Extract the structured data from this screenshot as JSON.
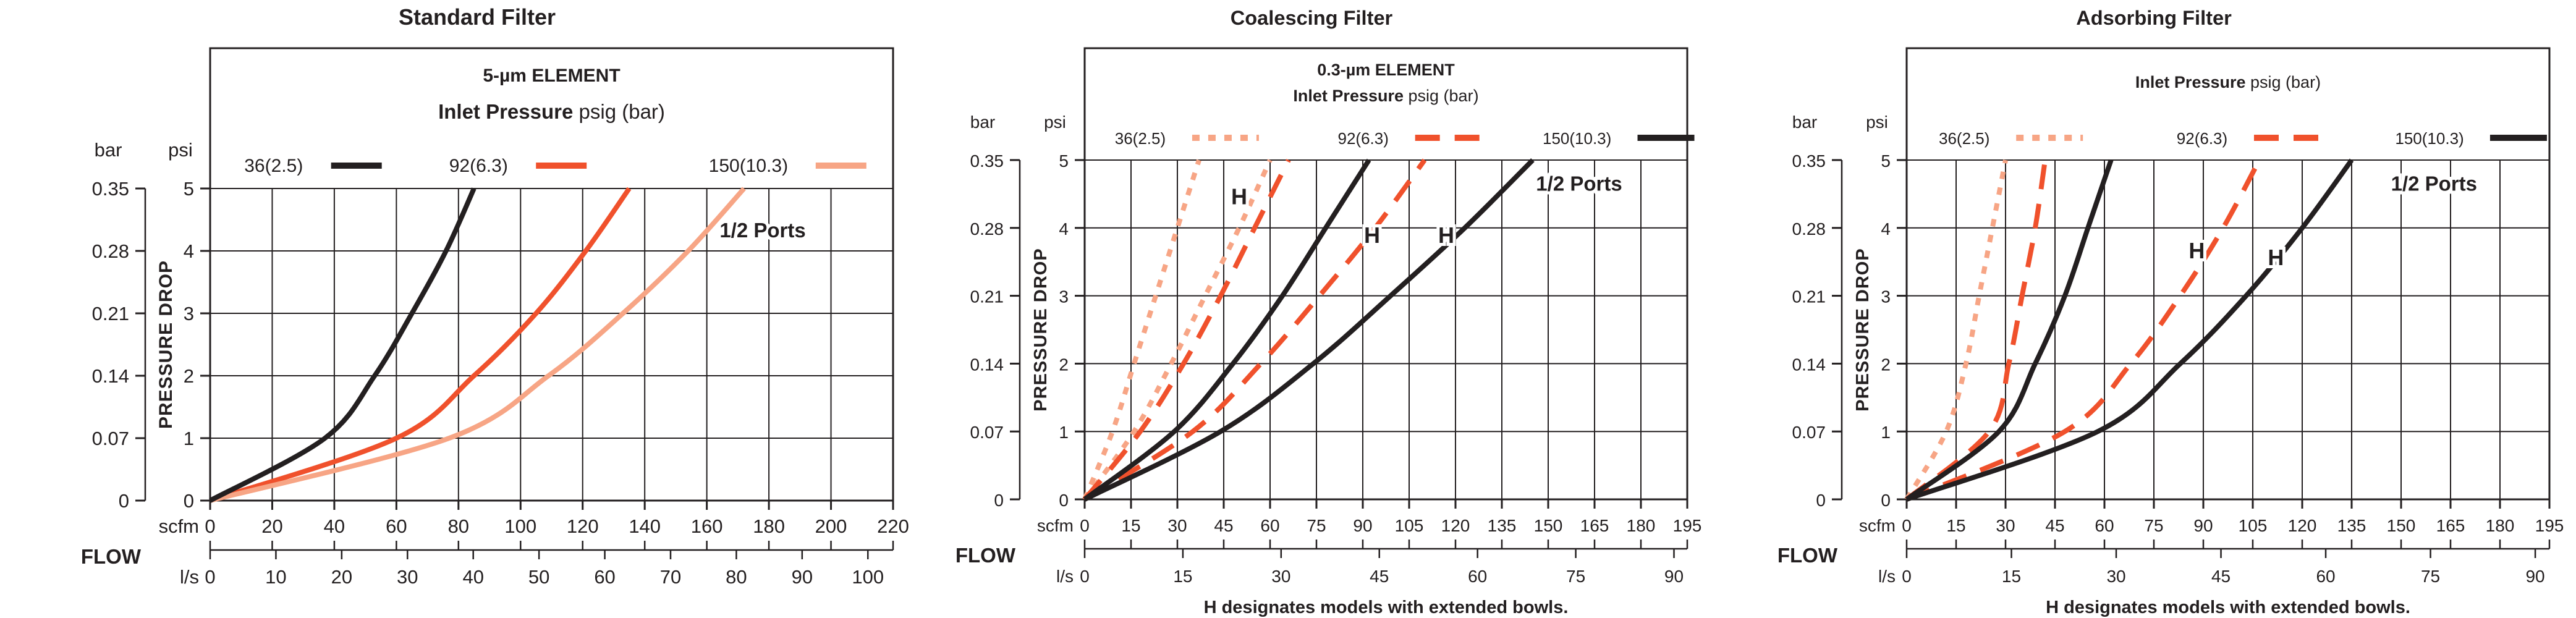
{
  "colors": {
    "ink": "#231f20",
    "orange": "#f0512c",
    "salmon": "#f7a585",
    "background": "#ffffff",
    "grid": "#231f20"
  },
  "shared": {
    "pressure_axis_label": "PRESSURE DROP",
    "flow_axis_label": "FLOW",
    "bar_unit": "bar",
    "psi_unit": "psi",
    "scfm_unit": "scfm",
    "ls_unit": "l/s",
    "bar_ticks": [
      "0.35",
      "0.28",
      "0.21",
      "0.14",
      "0.07",
      "0"
    ],
    "psi_ticks": [
      "5",
      "4",
      "3",
      "2",
      "1",
      "0"
    ],
    "inlet_bold": "Inlet Pressure",
    "inlet_normal": " psig (bar)",
    "ports_label": "1/2 Ports",
    "footnote": "H designates models with extended bowls.",
    "h_marker": "H",
    "scfm_per_ls": 2.1189
  },
  "chart_data": [
    {
      "type": "line",
      "title": "Standard Filter",
      "element_label": "5-µm ELEMENT",
      "ports_label": "1/2 Ports",
      "x_scfm": {
        "min": 0,
        "max": 220,
        "step": 20
      },
      "x_ls": {
        "min": 0,
        "max": 100,
        "step": 10
      },
      "y_psi": {
        "min": 0,
        "max": 5,
        "step": 1
      },
      "y_bar": {
        "min": 0,
        "max": 0.35,
        "step": 0.07
      },
      "has_footnote": false,
      "ports_pos": {
        "scfm": 178,
        "psi": 4.22
      },
      "legend": [
        {
          "label": "36(2.5)",
          "color": "ink",
          "dash": "solid"
        },
        {
          "label": "92(6.3)",
          "color": "orange",
          "dash": "solid"
        },
        {
          "label": "150(10.3)",
          "color": "salmon",
          "dash": "solid"
        }
      ],
      "series": [
        {
          "name": "36(2.5)",
          "color": "ink",
          "dash": "solid",
          "points_scfm_psi": [
            [
              0,
              0
            ],
            [
              37,
              1
            ],
            [
              53,
              2
            ],
            [
              65,
              3
            ],
            [
              76,
              4
            ],
            [
              85,
              5
            ]
          ]
        },
        {
          "name": "92(6.3)",
          "color": "orange",
          "dash": "solid",
          "points_scfm_psi": [
            [
              0,
              0
            ],
            [
              60,
              1
            ],
            [
              85,
              2
            ],
            [
              105,
              3
            ],
            [
              121,
              4
            ],
            [
              135,
              5
            ]
          ]
        },
        {
          "name": "150(10.3)",
          "color": "salmon",
          "dash": "solid",
          "points_scfm_psi": [
            [
              0,
              0
            ],
            [
              77,
              1
            ],
            [
              109,
              2
            ],
            [
              133,
              3
            ],
            [
              154,
              4
            ],
            [
              172,
              5
            ]
          ]
        }
      ],
      "h_labels": []
    },
    {
      "type": "line",
      "title": "Coalescing Filter",
      "element_label": "0.3-µm ELEMENT",
      "ports_label": "1/2 Ports",
      "x_scfm": {
        "min": 0,
        "max": 195,
        "step": 15
      },
      "x_ls": {
        "min": 0,
        "max": 90,
        "step": 15
      },
      "y_psi": {
        "min": 0,
        "max": 5,
        "step": 1
      },
      "y_bar": {
        "min": 0,
        "max": 0.35,
        "step": 0.07
      },
      "has_footnote": true,
      "ports_pos": {
        "scfm": 160,
        "psi": 4.55
      },
      "legend": [
        {
          "label": "36(2.5)",
          "color": "salmon",
          "dash": "dotted"
        },
        {
          "label": "92(6.3)",
          "color": "orange",
          "dash": "dashed"
        },
        {
          "label": "150(10.3)",
          "color": "ink",
          "dash": "solid"
        }
      ],
      "series": [
        {
          "name": "36(2.5)",
          "color": "salmon",
          "dash": "dotted",
          "points_scfm_psi": [
            [
              0,
              0
            ],
            [
              9,
              1
            ],
            [
              16,
              2
            ],
            [
              23,
              3
            ],
            [
              30,
              4
            ],
            [
              37,
              5
            ]
          ]
        },
        {
          "name": "36(2.5) H",
          "color": "salmon",
          "dash": "dotted",
          "points_scfm_psi": [
            [
              0,
              0
            ],
            [
              16,
              1
            ],
            [
              28,
              2
            ],
            [
              39,
              3
            ],
            [
              50,
              4
            ],
            [
              60,
              5
            ]
          ]
        },
        {
          "name": "92(6.3)",
          "color": "orange",
          "dash": "dashed",
          "points_scfm_psi": [
            [
              0,
              0
            ],
            [
              18,
              1
            ],
            [
              32,
              2
            ],
            [
              44,
              3
            ],
            [
              55,
              4
            ],
            [
              66,
              5
            ]
          ]
        },
        {
          "name": "92(6.3) H",
          "color": "orange",
          "dash": "dashed",
          "points_scfm_psi": [
            [
              0,
              0
            ],
            [
              35,
              1
            ],
            [
              57,
              2
            ],
            [
              76,
              3
            ],
            [
              94,
              4
            ],
            [
              110,
              5
            ]
          ]
        },
        {
          "name": "150(10.3)",
          "color": "ink",
          "dash": "solid",
          "points_scfm_psi": [
            [
              0,
              0
            ],
            [
              29,
              1
            ],
            [
              48,
              2
            ],
            [
              64,
              3
            ],
            [
              78,
              4
            ],
            [
              92,
              5
            ]
          ]
        },
        {
          "name": "150(10.3) H",
          "color": "ink",
          "dash": "solid",
          "points_scfm_psi": [
            [
              0,
              0
            ],
            [
              44,
              1
            ],
            [
              74,
              2
            ],
            [
              99,
              3
            ],
            [
              123,
              4
            ],
            [
              145,
              5
            ]
          ]
        }
      ],
      "h_labels": [
        {
          "scfm": 50,
          "psi": 4.35
        },
        {
          "scfm": 93,
          "psi": 3.78
        },
        {
          "scfm": 117,
          "psi": 3.78
        }
      ]
    },
    {
      "type": "line",
      "title": "Adsorbing Filter",
      "element_label": "",
      "ports_label": "1/2 Ports",
      "x_scfm": {
        "min": 0,
        "max": 195,
        "step": 15
      },
      "x_ls": {
        "min": 0,
        "max": 90,
        "step": 15
      },
      "y_psi": {
        "min": 0,
        "max": 5,
        "step": 1
      },
      "y_bar": {
        "min": 0,
        "max": 0.35,
        "step": 0.07
      },
      "has_footnote": true,
      "ports_pos": {
        "scfm": 160,
        "psi": 4.55
      },
      "legend": [
        {
          "label": "36(2.5)",
          "color": "salmon",
          "dash": "dotted"
        },
        {
          "label": "92(6.3)",
          "color": "orange",
          "dash": "dashed"
        },
        {
          "label": "150(10.3)",
          "color": "ink",
          "dash": "solid"
        }
      ],
      "series": [
        {
          "name": "36(2.5)",
          "color": "salmon",
          "dash": "dotted",
          "points_scfm_psi": [
            [
              0,
              0
            ],
            [
              12,
              1
            ],
            [
              18,
              2
            ],
            [
              22,
              3
            ],
            [
              26,
              4
            ],
            [
              30,
              5
            ]
          ]
        },
        {
          "name": "92(6.3)",
          "color": "orange",
          "dash": "dashed",
          "points_scfm_psi": [
            [
              0,
              0
            ],
            [
              25,
              1
            ],
            [
              31,
              2
            ],
            [
              35,
              3
            ],
            [
              39,
              4
            ],
            [
              42,
              5
            ]
          ]
        },
        {
          "name": "92(6.3) H",
          "color": "orange",
          "dash": "dashed",
          "points_scfm_psi": [
            [
              0,
              0
            ],
            [
              48,
              1
            ],
            [
              68,
              2
            ],
            [
              83,
              3
            ],
            [
              96,
              4
            ],
            [
              107,
              5
            ]
          ]
        },
        {
          "name": "150(10.3)",
          "color": "ink",
          "dash": "solid",
          "points_scfm_psi": [
            [
              0,
              0
            ],
            [
              28,
              1
            ],
            [
              39,
              2
            ],
            [
              48,
              3
            ],
            [
              55,
              4
            ],
            [
              62,
              5
            ]
          ]
        },
        {
          "name": "150(10.3) H",
          "color": "ink",
          "dash": "solid",
          "points_scfm_psi": [
            [
              0,
              0
            ],
            [
              58,
              1
            ],
            [
              83,
              2
            ],
            [
              103,
              3
            ],
            [
              120,
              4
            ],
            [
              135,
              5
            ]
          ]
        }
      ],
      "h_labels": [
        {
          "scfm": 88,
          "psi": 3.55
        },
        {
          "scfm": 112,
          "psi": 3.45
        }
      ]
    }
  ]
}
